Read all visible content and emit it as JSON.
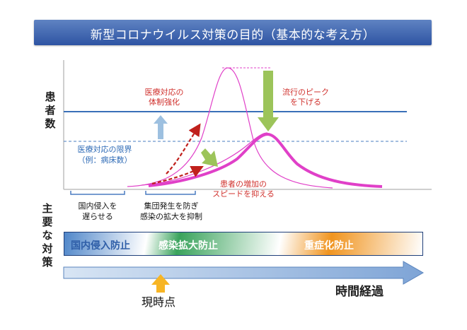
{
  "title": "新型コロナウイルス対策の目的（基本的な考え方）",
  "y_axis_label": [
    "患",
    "者",
    "数"
  ],
  "measures_label": [
    "主",
    "要",
    "な",
    "対",
    "策"
  ],
  "annotations": {
    "medical_system": [
      "医療対応の",
      "体制強化"
    ],
    "lower_peak": [
      "流行のピーク",
      "を下げる"
    ],
    "medical_limit": [
      "医療対応の限界",
      "（例：病床数）"
    ],
    "slow_increase": [
      "患者の増加の",
      "スピードを抑える"
    ]
  },
  "phases": {
    "phase1": [
      "国内侵入を",
      "遅らせる"
    ],
    "phase2": [
      "集団発生を防ぎ",
      "感染の拡大を抑制"
    ]
  },
  "policy_bar": {
    "border_prevention": "国内侵入防止",
    "spread_prevention": "感染拡大防止",
    "severe_prevention": "重症化防止"
  },
  "timeline": {
    "elapsed_label": "時間経過",
    "now_label": "現時点"
  },
  "colors": {
    "banner": "#3a60ad",
    "limit_line": "#3a70b8",
    "curve": "#e040c8",
    "red_arrow": "#c0201c",
    "green_arrow": "#9cc45a",
    "blue_arrow": "#9dc0e0",
    "now_arrow": "#f7b524",
    "timeline_arrow": "#9cb8dd",
    "border_prevention": "#2f5fa8",
    "spread_prevention": "#ffffff",
    "severe_prevention": "#ffffff"
  },
  "chart_data": {
    "type": "line",
    "series": [
      {
        "style": "thin",
        "peak": "high"
      },
      {
        "style": "thick",
        "peak": "low"
      }
    ],
    "reference_lines": [
      {
        "style": "solid",
        "level": "high"
      },
      {
        "style": "dashed",
        "level": "low"
      }
    ]
  }
}
